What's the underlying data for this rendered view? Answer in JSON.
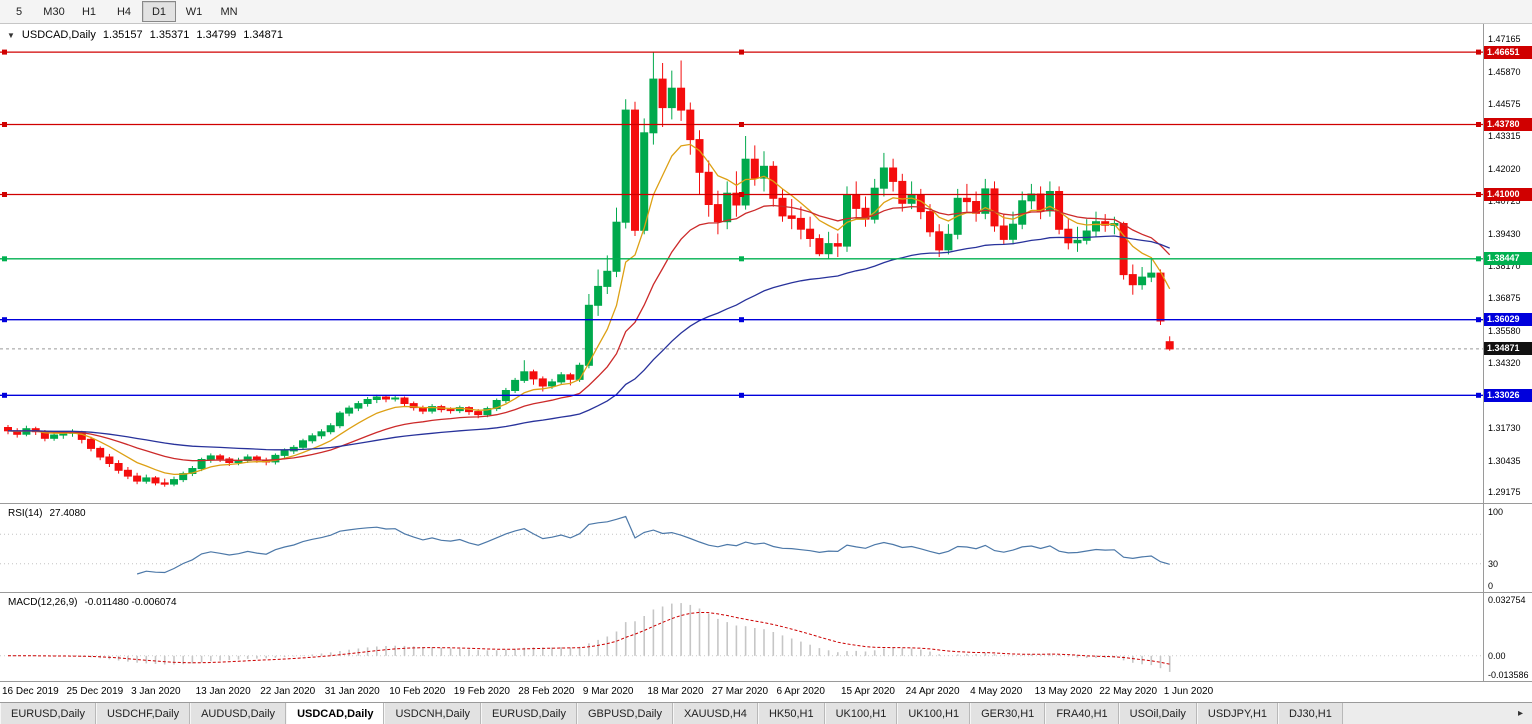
{
  "toolbar": {
    "timeframes": [
      {
        "label": "5",
        "active": false
      },
      {
        "label": "M30",
        "active": false
      },
      {
        "label": "H1",
        "active": false
      },
      {
        "label": "H4",
        "active": false
      },
      {
        "label": "D1",
        "active": true
      },
      {
        "label": "W1",
        "active": false
      },
      {
        "label": "MN",
        "active": false
      }
    ]
  },
  "chart": {
    "dropdown_icon": "▼",
    "symbol": "USDCAD,Daily",
    "open": "1.35157",
    "high": "1.35371",
    "low": "1.34799",
    "close": "1.34871",
    "price_axis_labels": [
      "1.47165",
      "1.45870",
      "1.44575",
      "1.43315",
      "1.42020",
      "1.40725",
      "1.39430",
      "1.38170",
      "1.36875",
      "1.35580",
      "1.34320",
      "1.33025",
      "1.31730",
      "1.30435",
      "1.29175"
    ],
    "bid_badge": "1.34871",
    "colors": {
      "up": "#00A94C",
      "down": "#F40D0D",
      "ma_fast": "#DDA014",
      "ma_mid": "#CC2A2A",
      "ma_slow": "#28329B",
      "rsi": "#4C78A8",
      "macd_hist": "#C6C6C6",
      "macd_signal": "#CC0000",
      "line_red": "#D00000",
      "line_green": "#00B050",
      "line_blue": "#0000DC",
      "bid": "#111111"
    }
  },
  "rsi_panel": {
    "label": "RSI(14)",
    "value": "27.4080",
    "axis_labels": [
      "100",
      "30",
      "0"
    ]
  },
  "macd_panel": {
    "label": "MACD(12,26,9)",
    "value": "-0.011480 -0.006074",
    "axis_top": "0.032754",
    "axis_zero": "0.00",
    "axis_bottom": "-0.013586"
  },
  "tabs": {
    "scroll_right_icon": "▸",
    "items": [
      {
        "label": "EURUSD,Daily",
        "active": false
      },
      {
        "label": "USDCHF,Daily",
        "active": false
      },
      {
        "label": "AUDUSD,Daily",
        "active": false
      },
      {
        "label": "USDCAD,Daily",
        "active": true
      },
      {
        "label": "USDCNH,Daily",
        "active": false
      },
      {
        "label": "EURUSD,Daily",
        "active": false
      },
      {
        "label": "GBPUSD,Daily",
        "active": false
      },
      {
        "label": "XAUUSD,H4",
        "active": false
      },
      {
        "label": "HK50,H1",
        "active": false
      },
      {
        "label": "UK100,H1",
        "active": false
      },
      {
        "label": "UK100,H1",
        "active": false
      },
      {
        "label": "GER30,H1",
        "active": false
      },
      {
        "label": "FRA40,H1",
        "active": false
      },
      {
        "label": "USOil,Daily",
        "active": false
      },
      {
        "label": "USDJPY,H1",
        "active": false
      },
      {
        "label": "DJ30,H1",
        "active": false
      }
    ]
  },
  "chart_data": {
    "type": "candlestick",
    "title": "USDCAD,Daily",
    "x_tick_labels": [
      "16 Dec 2019",
      "25 Dec 2019",
      "3 Jan 2020",
      "13 Jan 2020",
      "22 Jan 2020",
      "31 Jan 2020",
      "10 Feb 2020",
      "19 Feb 2020",
      "28 Feb 2020",
      "9 Mar 2020",
      "18 Mar 2020",
      "27 Mar 2020",
      "6 Apr 2020",
      "15 Apr 2020",
      "24 Apr 2020",
      "4 May 2020",
      "13 May 2020",
      "22 May 2020",
      "1 Jun 2020"
    ],
    "x_tick_step": 7,
    "price_range": [
      1.2903,
      1.4753
    ],
    "bid": 1.34871,
    "hlines": [
      {
        "value": 1.46651,
        "label": "1.46651",
        "color_key": "line_red"
      },
      {
        "value": 1.4378,
        "label": "1.43780",
        "color_key": "line_red"
      },
      {
        "value": 1.41,
        "label": "1.41000",
        "color_key": "line_red"
      },
      {
        "value": 1.38447,
        "label": "1.38447",
        "color_key": "line_green"
      },
      {
        "value": 1.36029,
        "label": "1.36029",
        "color_key": "line_blue"
      },
      {
        "value": 1.33026,
        "label": "1.33026",
        "color_key": "line_blue"
      }
    ],
    "moving_averages": [
      {
        "period": 8,
        "type": "ema",
        "color_key": "ma_fast"
      },
      {
        "period": 21,
        "type": "ema",
        "color_key": "ma_mid"
      },
      {
        "period": 55,
        "type": "ema",
        "color_key": "ma_slow"
      }
    ],
    "rsi": {
      "period": 14,
      "levels": [
        70,
        30
      ],
      "range": [
        0,
        100
      ]
    },
    "macd": {
      "fast": 12,
      "slow": 26,
      "signal": 9
    },
    "candles": [
      [
        1.3175,
        1.3185,
        1.3148,
        1.3162
      ],
      [
        1.3162,
        1.3172,
        1.3135,
        1.3148
      ],
      [
        1.3148,
        1.3182,
        1.314,
        1.317
      ],
      [
        1.317,
        1.3178,
        1.3145,
        1.3158
      ],
      [
        1.3158,
        1.3165,
        1.312,
        1.3132
      ],
      [
        1.3132,
        1.3155,
        1.3122,
        1.3145
      ],
      [
        1.3145,
        1.316,
        1.313,
        1.3152
      ],
      [
        1.3152,
        1.3168,
        1.3138,
        1.3158
      ],
      [
        1.3158,
        1.3162,
        1.3112,
        1.3128
      ],
      [
        1.3128,
        1.3138,
        1.308,
        1.3092
      ],
      [
        1.3092,
        1.31,
        1.3045,
        1.3058
      ],
      [
        1.3058,
        1.307,
        1.3018,
        1.3032
      ],
      [
        1.3032,
        1.3045,
        1.2992,
        1.3005
      ],
      [
        1.3005,
        1.3018,
        1.297,
        1.2982
      ],
      [
        1.2982,
        1.2995,
        1.295,
        1.2962
      ],
      [
        1.2962,
        1.2988,
        1.2952,
        1.2975
      ],
      [
        1.2975,
        1.2982,
        1.2945,
        1.2955
      ],
      [
        1.2955,
        1.2972,
        1.294,
        1.295
      ],
      [
        1.295,
        1.298,
        1.2942,
        1.2968
      ],
      [
        1.2968,
        1.3,
        1.2958,
        1.2992
      ],
      [
        1.2992,
        1.3022,
        1.2982,
        1.3012
      ],
      [
        1.3012,
        1.3055,
        1.3002,
        1.3048
      ],
      [
        1.3048,
        1.3072,
        1.3035,
        1.3062
      ],
      [
        1.3062,
        1.307,
        1.3038,
        1.305
      ],
      [
        1.305,
        1.3058,
        1.3022,
        1.3036
      ],
      [
        1.3036,
        1.3055,
        1.3025,
        1.3044
      ],
      [
        1.3044,
        1.3068,
        1.3034,
        1.3058
      ],
      [
        1.3058,
        1.3065,
        1.3035,
        1.3046
      ],
      [
        1.3046,
        1.3055,
        1.3025,
        1.3038
      ],
      [
        1.3038,
        1.3072,
        1.3028,
        1.3064
      ],
      [
        1.3064,
        1.3092,
        1.3054,
        1.3082
      ],
      [
        1.3082,
        1.3105,
        1.307,
        1.3096
      ],
      [
        1.3096,
        1.313,
        1.3086,
        1.3122
      ],
      [
        1.3122,
        1.3152,
        1.3112,
        1.3142
      ],
      [
        1.3142,
        1.3168,
        1.313,
        1.3158
      ],
      [
        1.3158,
        1.3192,
        1.3148,
        1.3182
      ],
      [
        1.3182,
        1.324,
        1.3172,
        1.3232
      ],
      [
        1.3232,
        1.3262,
        1.322,
        1.3252
      ],
      [
        1.3252,
        1.328,
        1.324,
        1.327
      ],
      [
        1.327,
        1.3296,
        1.3258,
        1.3286
      ],
      [
        1.3286,
        1.3305,
        1.3272,
        1.3296
      ],
      [
        1.3296,
        1.3302,
        1.3275,
        1.3288
      ],
      [
        1.3288,
        1.33,
        1.3278,
        1.3292
      ],
      [
        1.3292,
        1.3298,
        1.3258,
        1.327
      ],
      [
        1.327,
        1.3278,
        1.3242,
        1.3254
      ],
      [
        1.3254,
        1.3262,
        1.3228,
        1.324
      ],
      [
        1.324,
        1.3268,
        1.323,
        1.3258
      ],
      [
        1.3258,
        1.3265,
        1.3235,
        1.3246
      ],
      [
        1.3246,
        1.3255,
        1.323,
        1.3242
      ],
      [
        1.3242,
        1.3262,
        1.3232,
        1.3254
      ],
      [
        1.3254,
        1.326,
        1.3225,
        1.3238
      ],
      [
        1.3238,
        1.3248,
        1.3212,
        1.3226
      ],
      [
        1.3226,
        1.3258,
        1.3216,
        1.325
      ],
      [
        1.325,
        1.329,
        1.324,
        1.3282
      ],
      [
        1.3282,
        1.3332,
        1.3272,
        1.3322
      ],
      [
        1.3322,
        1.3372,
        1.3312,
        1.3362
      ],
      [
        1.3362,
        1.3442,
        1.3352,
        1.3396
      ],
      [
        1.3396,
        1.3405,
        1.3345,
        1.3368
      ],
      [
        1.3368,
        1.3378,
        1.3318,
        1.334
      ],
      [
        1.334,
        1.3368,
        1.3328,
        1.3356
      ],
      [
        1.3356,
        1.3395,
        1.3346,
        1.3384
      ],
      [
        1.3384,
        1.3392,
        1.3342,
        1.3366
      ],
      [
        1.3366,
        1.3432,
        1.3356,
        1.3422
      ],
      [
        1.3422,
        1.3705,
        1.341,
        1.366
      ],
      [
        1.366,
        1.3802,
        1.3618,
        1.3735
      ],
      [
        1.3735,
        1.3858,
        1.3705,
        1.3795
      ],
      [
        1.3795,
        1.4048,
        1.3772,
        1.399
      ],
      [
        1.399,
        1.4478,
        1.3965,
        1.4435
      ],
      [
        1.4435,
        1.4468,
        1.3935,
        1.3958
      ],
      [
        1.3958,
        1.4402,
        1.3942,
        1.4345
      ],
      [
        1.4345,
        1.46651,
        1.4298,
        1.4558
      ],
      [
        1.4558,
        1.4622,
        1.4368,
        1.4445
      ],
      [
        1.4445,
        1.4592,
        1.4398,
        1.4522
      ],
      [
        1.4522,
        1.4632,
        1.4392,
        1.4435
      ],
      [
        1.4435,
        1.4465,
        1.4258,
        1.4318
      ],
      [
        1.4318,
        1.4355,
        1.4102,
        1.4188
      ],
      [
        1.4188,
        1.4235,
        1.4012,
        1.406
      ],
      [
        1.406,
        1.4115,
        1.3942,
        1.3992
      ],
      [
        1.3992,
        1.4152,
        1.3962,
        1.4105
      ],
      [
        1.4105,
        1.4192,
        1.4012,
        1.4058
      ],
      [
        1.4058,
        1.4332,
        1.404,
        1.424
      ],
      [
        1.424,
        1.4295,
        1.4135,
        1.4165
      ],
      [
        1.4165,
        1.4272,
        1.4112,
        1.4212
      ],
      [
        1.4212,
        1.4232,
        1.4052,
        1.4085
      ],
      [
        1.4085,
        1.4122,
        1.3992,
        1.4015
      ],
      [
        1.4015,
        1.4082,
        1.3962,
        1.4005
      ],
      [
        1.4005,
        1.4052,
        1.3922,
        1.3962
      ],
      [
        1.3962,
        1.4012,
        1.3892,
        1.3925
      ],
      [
        1.3925,
        1.3942,
        1.3855,
        1.3865
      ],
      [
        1.3865,
        1.3952,
        1.3842,
        1.3905
      ],
      [
        1.3905,
        1.3945,
        1.3852,
        1.3895
      ],
      [
        1.3895,
        1.4132,
        1.3872,
        1.4098
      ],
      [
        1.4098,
        1.4152,
        1.4002,
        1.4045
      ],
      [
        1.4045,
        1.4092,
        1.3972,
        1.4002
      ],
      [
        1.4002,
        1.4162,
        1.3985,
        1.4125
      ],
      [
        1.4125,
        1.4265,
        1.4092,
        1.4205
      ],
      [
        1.4205,
        1.4242,
        1.4112,
        1.4152
      ],
      [
        1.4152,
        1.4182,
        1.4032,
        1.4065
      ],
      [
        1.4065,
        1.4152,
        1.4042,
        1.4098
      ],
      [
        1.4098,
        1.4122,
        1.4002,
        1.4032
      ],
      [
        1.4032,
        1.4062,
        1.3932,
        1.3952
      ],
      [
        1.3952,
        1.3982,
        1.3852,
        1.388
      ],
      [
        1.388,
        1.3982,
        1.3862,
        1.3942
      ],
      [
        1.3942,
        1.4122,
        1.3922,
        1.4085
      ],
      [
        1.4085,
        1.4142,
        1.4032,
        1.4072
      ],
      [
        1.4072,
        1.4112,
        1.3992,
        1.4025
      ],
      [
        1.4025,
        1.4162,
        1.4002,
        1.4122
      ],
      [
        1.4122,
        1.4152,
        1.3952,
        1.3975
      ],
      [
        1.3975,
        1.4022,
        1.3902,
        1.3922
      ],
      [
        1.3922,
        1.4032,
        1.3902,
        1.3982
      ],
      [
        1.3982,
        1.4112,
        1.3962,
        1.4075
      ],
      [
        1.4075,
        1.4142,
        1.4042,
        1.4102
      ],
      [
        1.4102,
        1.4132,
        1.4002,
        1.4035
      ],
      [
        1.4035,
        1.4152,
        1.4012,
        1.4112
      ],
      [
        1.4112,
        1.4132,
        1.3942,
        1.3962
      ],
      [
        1.3962,
        1.4002,
        1.3882,
        1.3908
      ],
      [
        1.3908,
        1.3972,
        1.3872,
        1.3918
      ],
      [
        1.3918,
        1.4002,
        1.3902,
        1.3955
      ],
      [
        1.3955,
        1.4032,
        1.3932,
        1.3992
      ],
      [
        1.3992,
        1.4022,
        1.3952,
        1.3978
      ],
      [
        1.3978,
        1.4012,
        1.3942,
        1.3985
      ],
      [
        1.3985,
        1.3992,
        1.3762,
        1.3782
      ],
      [
        1.3782,
        1.3822,
        1.3702,
        1.3742
      ],
      [
        1.3742,
        1.3812,
        1.3722,
        1.3772
      ],
      [
        1.3772,
        1.3842,
        1.3752,
        1.3788
      ],
      [
        1.3788,
        1.3802,
        1.3582,
        1.3598
      ],
      [
        1.35157,
        1.35371,
        1.34799,
        1.34871
      ]
    ]
  }
}
